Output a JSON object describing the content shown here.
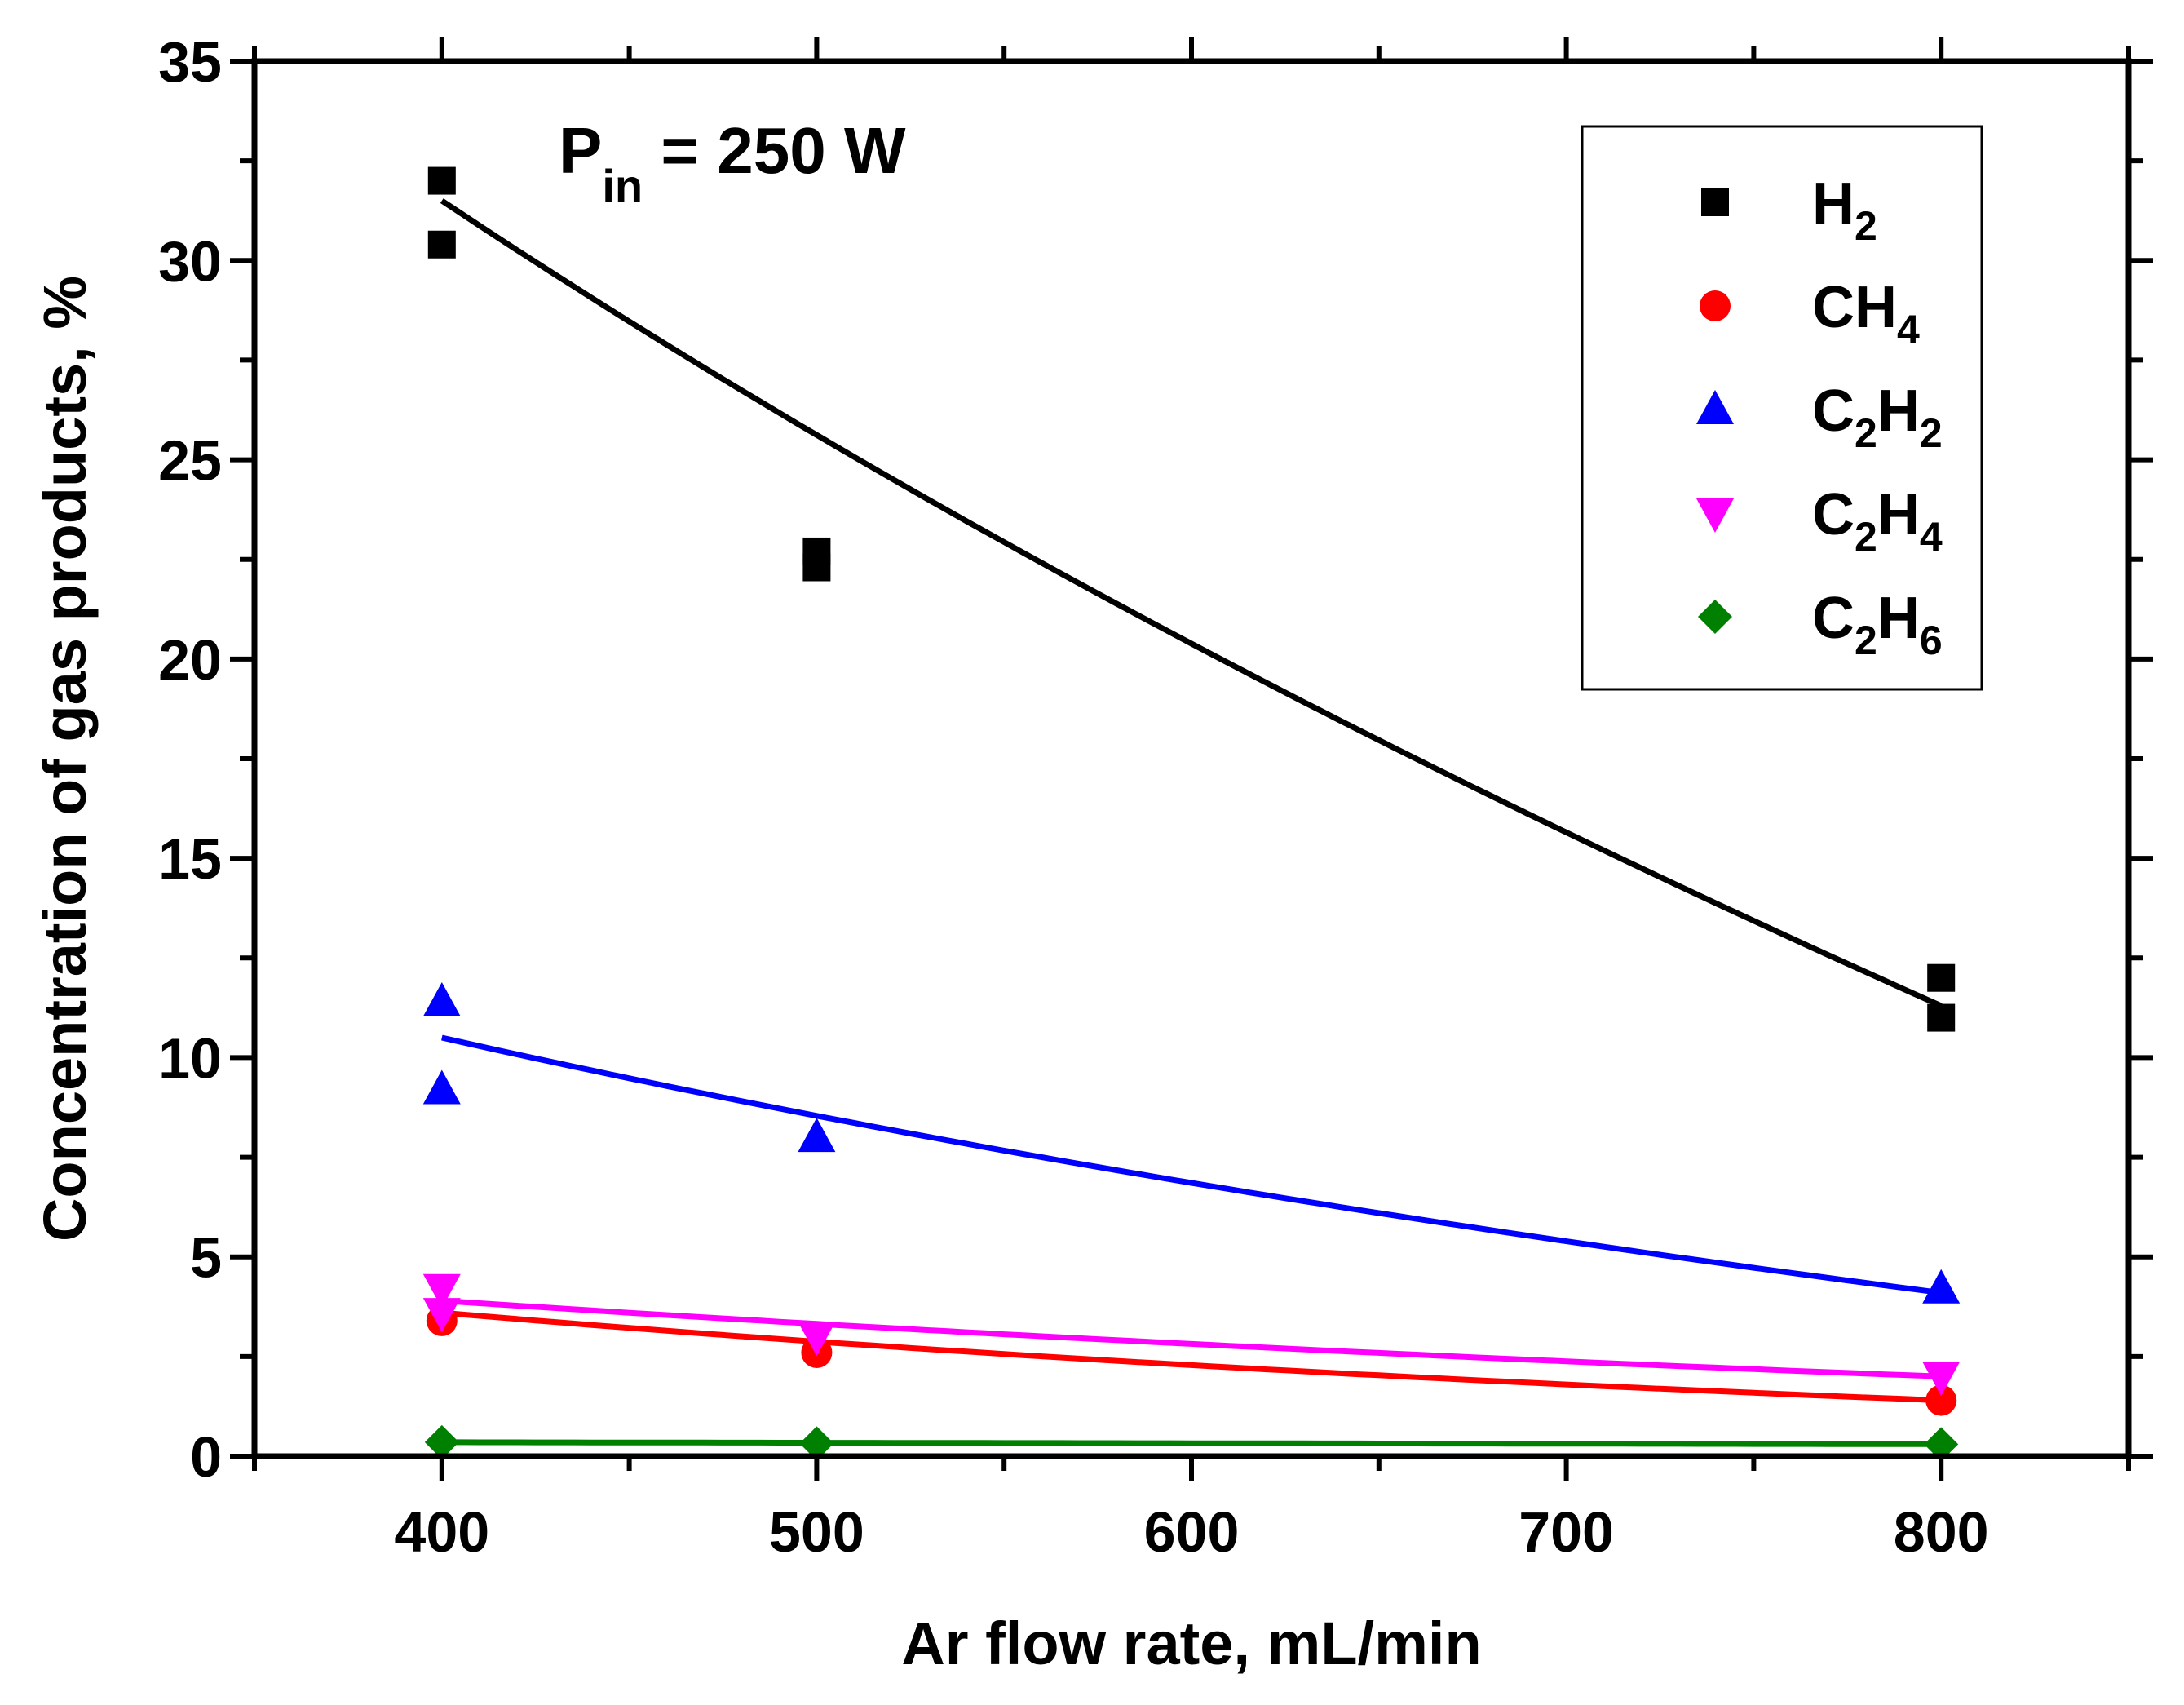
{
  "chart_data": {
    "type": "scatter",
    "title": "",
    "xlabel": "Ar flow rate, mL/min",
    "ylabel": "Concentration of gas products, %",
    "xlim": [
      350,
      850
    ],
    "ylim": [
      0,
      35
    ],
    "xticks": [
      400,
      500,
      600,
      700,
      800
    ],
    "yticks": [
      0,
      5,
      10,
      15,
      20,
      25,
      30,
      35
    ],
    "grid": false,
    "legend_position": "top-right",
    "annotation": {
      "main": "P",
      "sub": "in",
      "rest": " = 250 W"
    },
    "series": [
      {
        "name": "H2",
        "label": "H",
        "sub": "2",
        "color": "#000000",
        "marker": "square",
        "points": [
          [
            400,
            32.0
          ],
          [
            400,
            30.4
          ],
          [
            500,
            22.7
          ],
          [
            500,
            22.3
          ],
          [
            800,
            12.0
          ],
          [
            800,
            11.0
          ]
        ],
        "fit": {
          "x0": 400,
          "x1": 800,
          "a": 31.5,
          "b": 11.3,
          "c": 0.4
        }
      },
      {
        "name": "CH4",
        "label": "CH",
        "sub": "4",
        "color": "#ff0000",
        "marker": "circle",
        "points": [
          [
            400,
            3.4
          ],
          [
            500,
            2.6
          ],
          [
            800,
            1.4
          ]
        ],
        "fit": {
          "x0": 400,
          "x1": 800,
          "a": 3.6,
          "b": 1.4,
          "c": 0.85
        }
      },
      {
        "name": "C2H2",
        "label": "C",
        "sub": "2",
        "label2": "H",
        "sub2": "2",
        "color": "#0000ff",
        "marker": "triangle-up",
        "points": [
          [
            400,
            11.4
          ],
          [
            400,
            9.2
          ],
          [
            500,
            8.0
          ],
          [
            800,
            4.2
          ]
        ],
        "fit": {
          "x0": 400,
          "x1": 800,
          "a": 10.5,
          "b": 4.1,
          "c": 0.6
        }
      },
      {
        "name": "C2H4",
        "label": "C",
        "sub": "2",
        "label2": "H",
        "sub2": "4",
        "color": "#ff00ff",
        "marker": "triangle-down",
        "points": [
          [
            400,
            4.2
          ],
          [
            400,
            3.6
          ],
          [
            500,
            3.0
          ],
          [
            800,
            2.0
          ]
        ],
        "fit": {
          "x0": 400,
          "x1": 800,
          "a": 3.9,
          "b": 2.0,
          "c": 0.85
        }
      },
      {
        "name": "C2H6",
        "label": "C",
        "sub": "2",
        "label2": "H",
        "sub2": "6",
        "color": "#008000",
        "marker": "diamond",
        "points": [
          [
            400,
            0.35
          ],
          [
            500,
            0.32
          ],
          [
            800,
            0.3
          ]
        ],
        "fit": {
          "x0": 400,
          "x1": 800,
          "a": 0.35,
          "b": 0.3,
          "c": 0.8
        }
      }
    ]
  }
}
